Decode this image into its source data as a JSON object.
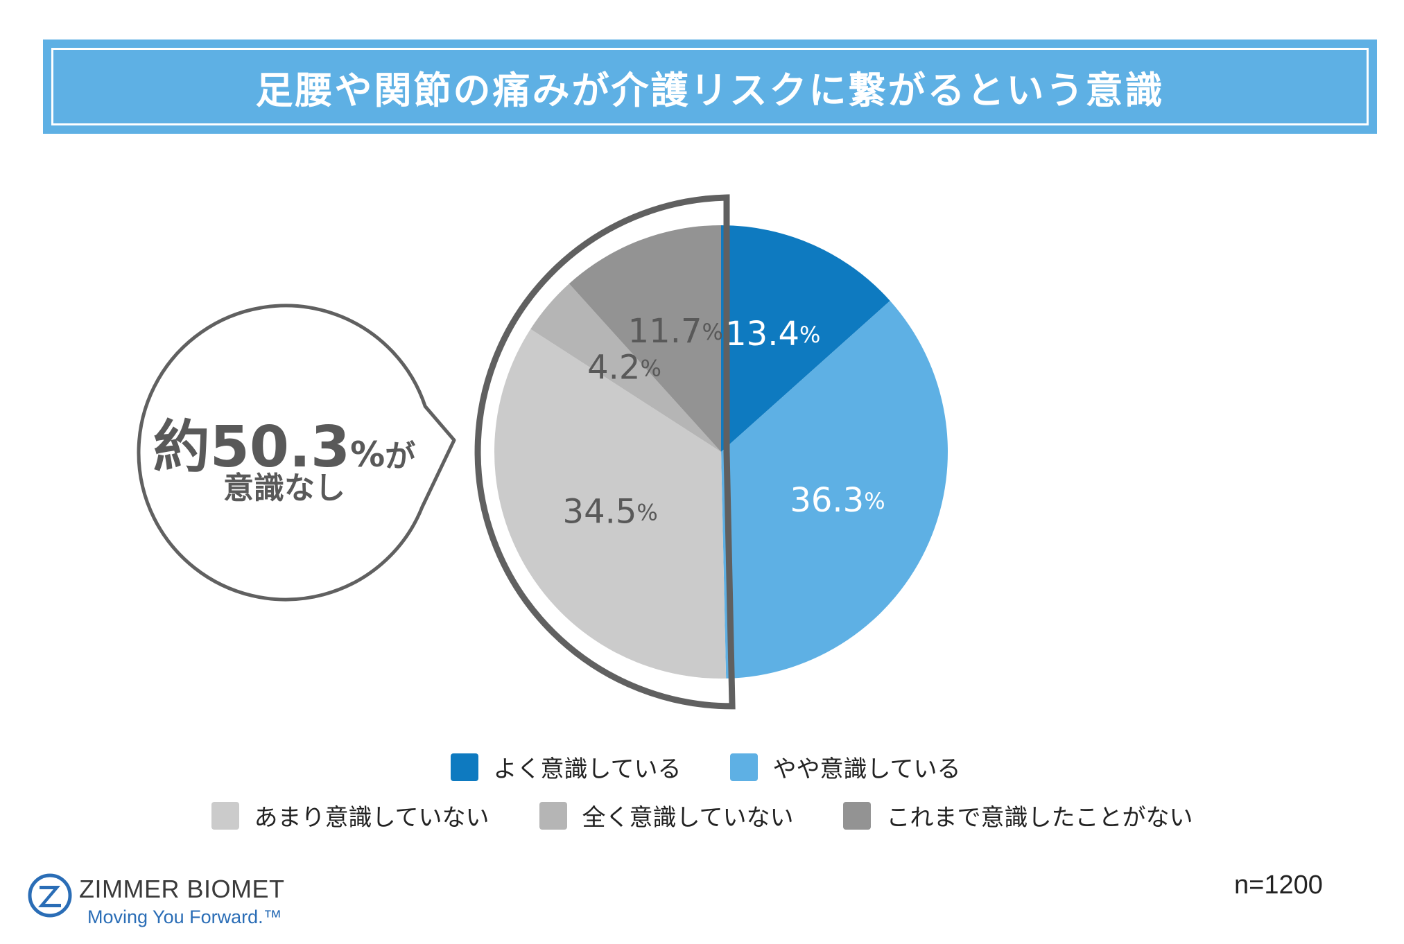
{
  "title": "足腰や関節の痛みが介護リスクに繋がるという意識",
  "chart_data": {
    "type": "pie",
    "slices": [
      {
        "label": "よく意識している",
        "value": 13.4,
        "value_text": "13.4",
        "color": "#0e7ac0",
        "label_color": "#ffffff"
      },
      {
        "label": "やや意識している",
        "value": 36.3,
        "value_text": "36.3",
        "color": "#5eb0e4",
        "label_color": "#ffffff"
      },
      {
        "label": "あまり意識していない",
        "value": 34.5,
        "value_text": "34.5",
        "color": "#cbcbcb",
        "label_color": "#595959"
      },
      {
        "label": "全く意識していない",
        "value": 4.2,
        "value_text": "4.2",
        "color": "#b5b5b5",
        "label_color": "#595959"
      },
      {
        "label": "これまで意識したことがない",
        "value": 11.7,
        "value_text": "11.7",
        "color": "#939393",
        "label_color": "#595959"
      }
    ],
    "unit": "%",
    "legend_position": "bottom"
  },
  "callout": {
    "prefix": "約",
    "value": "50.3",
    "unit": "%",
    "suffix": "が",
    "line2": "意識なし"
  },
  "legend": [
    {
      "label": "よく意識している",
      "color": "#0e7ac0"
    },
    {
      "label": "やや意識している",
      "color": "#5eb0e4"
    },
    {
      "label": "あまり意識していない",
      "color": "#cbcbcb"
    },
    {
      "label": "全く意識していない",
      "color": "#b5b5b5"
    },
    {
      "label": "これまで意識したことがない",
      "color": "#939393"
    }
  ],
  "logo": {
    "name": "ZIMMER BIOMET",
    "tagline": "Moving You Forward.™",
    "color": "#2a6db6"
  },
  "sample_size": "n=1200"
}
